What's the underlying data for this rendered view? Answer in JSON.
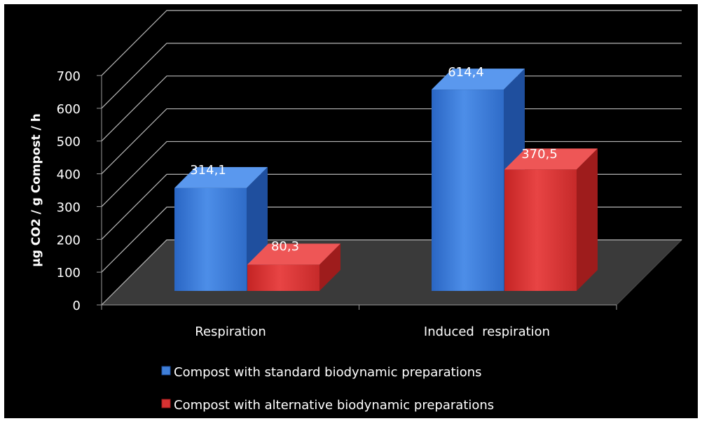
{
  "chart_data": {
    "type": "bar",
    "style": "3d-clustered-column",
    "categories": [
      "Respiration",
      "Induced  respiration"
    ],
    "series": [
      {
        "name": "Compost with standard biodynamic preparations",
        "values": [
          314.1,
          614.4
        ],
        "labels": [
          "314,1",
          "614,4"
        ],
        "color": "#3f7fd8"
      },
      {
        "name": "Compost with alternative biodynamic preparations",
        "values": [
          80.3,
          370.5
        ],
        "labels": [
          "80,3",
          "370,5"
        ],
        "color": "#d83232"
      }
    ],
    "title": "",
    "xlabel": "",
    "ylabel": "µg CO2 / g Compost / h",
    "ylim": [
      0,
      700
    ],
    "yticks": [
      0,
      100,
      200,
      300,
      400,
      500,
      600,
      700
    ],
    "grid": true,
    "legend_position": "bottom",
    "background": "#000000"
  }
}
